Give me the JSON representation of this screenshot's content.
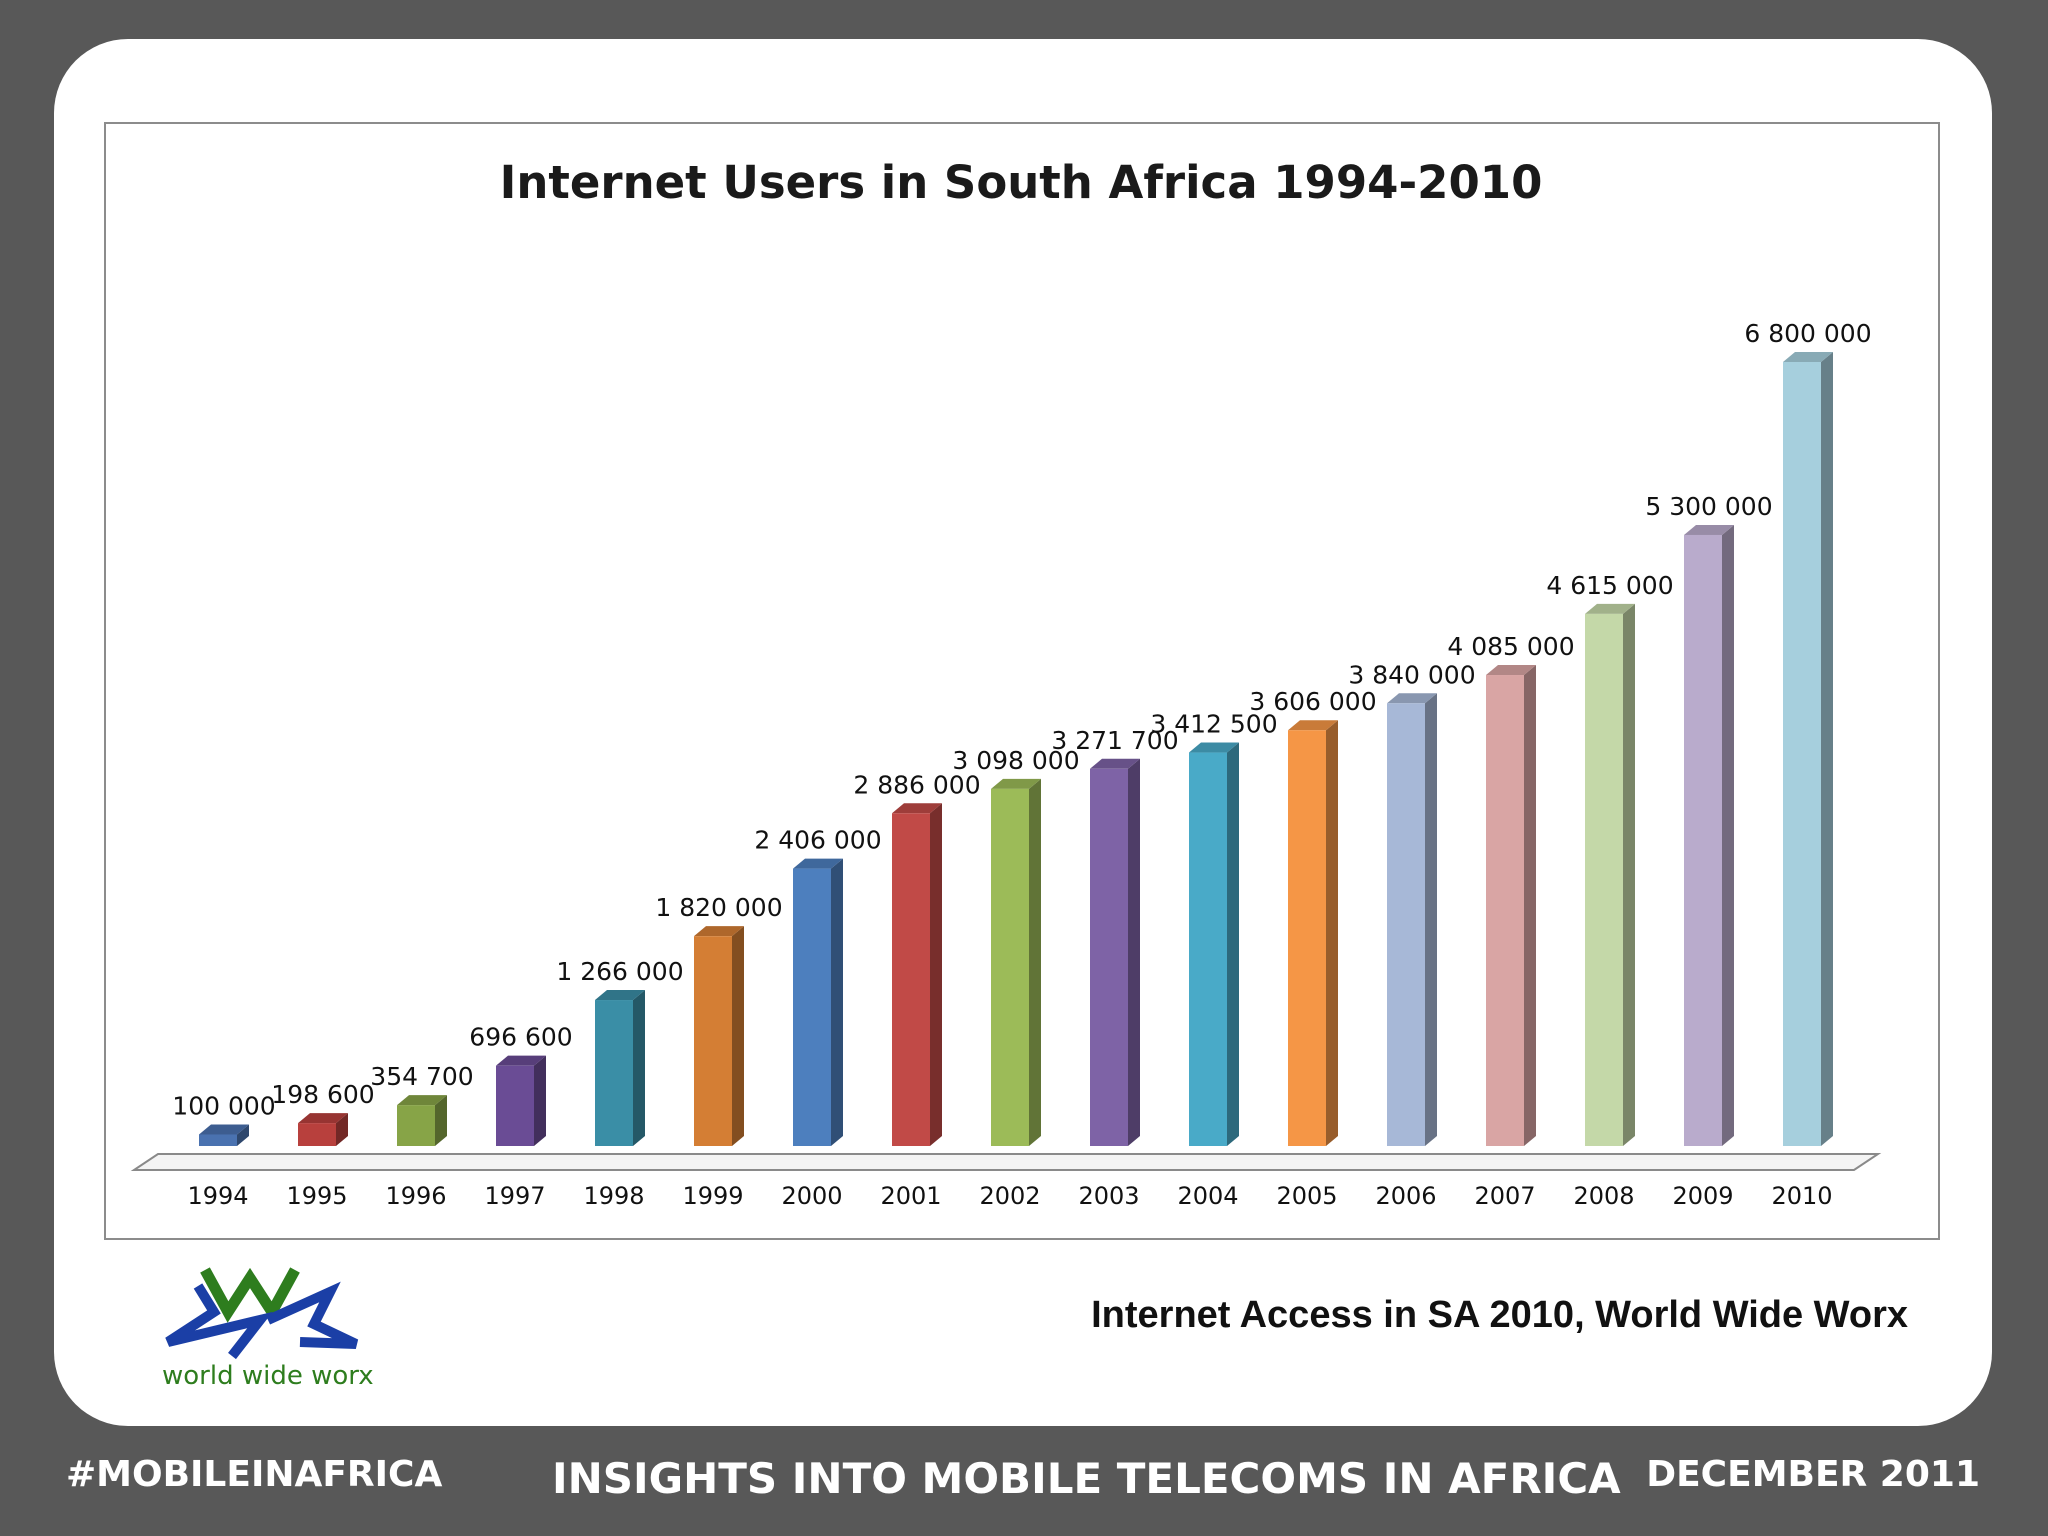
{
  "chart_data": {
    "type": "bar",
    "title": "Internet Users in South Africa 1994-2010",
    "categories": [
      "1994",
      "1995",
      "1996",
      "1997",
      "1998",
      "1999",
      "2000",
      "2001",
      "2002",
      "2003",
      "2004",
      "2005",
      "2006",
      "2007",
      "2008",
      "2009",
      "2010"
    ],
    "values": [
      100000,
      198600,
      354700,
      696600,
      1266000,
      1820000,
      2406000,
      2886000,
      3098000,
      3271700,
      3412500,
      3606000,
      3840000,
      4085000,
      4615000,
      5300000,
      6800000
    ],
    "value_labels": [
      "100 000",
      "198 600",
      "354 700",
      "696 600",
      "1 266 000",
      "1 820 000",
      "2 406 000",
      "2 886 000",
      "3 098 000",
      "3 271 700",
      "3 412 500",
      "3 606 000",
      "3 840 000",
      "4 085 000",
      "4 615 000",
      "5 300 000",
      "6 800 000"
    ],
    "colors": [
      "#4a72b0",
      "#b8403d",
      "#87a447",
      "#6a4c95",
      "#3a8ea6",
      "#d47e34",
      "#4d7fbe",
      "#c14a47",
      "#9cbb58",
      "#7e63a6",
      "#49aac8",
      "#f59646",
      "#a7b8d7",
      "#d9a5a4",
      "#c4d8a8",
      "#b9abcc",
      "#a6cfdd"
    ],
    "ylim": [
      0,
      6800000
    ],
    "grid": false,
    "legend": "none"
  },
  "source": "Internet Access in SA 2010, World Wide Worx",
  "logo_text": "world wide worx",
  "footer": {
    "left": "#MOBILEINAFRICA",
    "center": "INSIGHTS INTO MOBILE TELECOMS IN AFRICA",
    "right": "DECEMBER 2011"
  }
}
